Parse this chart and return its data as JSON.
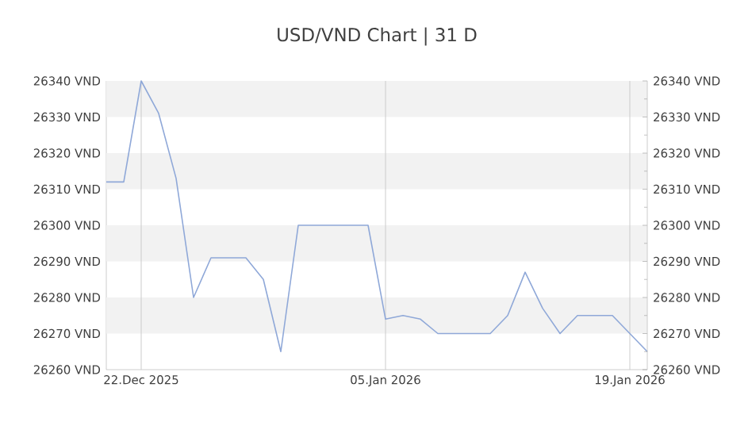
{
  "chart_data": {
    "type": "line",
    "title": "USD/VND Chart | 31 D",
    "x": [
      "2025-12-20",
      "2025-12-21",
      "2025-12-22",
      "2025-12-23",
      "2025-12-24",
      "2025-12-25",
      "2025-12-26",
      "2025-12-27",
      "2025-12-28",
      "2025-12-29",
      "2025-12-30",
      "2025-12-31",
      "2026-01-01",
      "2026-01-02",
      "2026-01-03",
      "2026-01-04",
      "2026-01-05",
      "2026-01-06",
      "2026-01-07",
      "2026-01-08",
      "2026-01-09",
      "2026-01-10",
      "2026-01-11",
      "2026-01-12",
      "2026-01-13",
      "2026-01-14",
      "2026-01-15",
      "2026-01-16",
      "2026-01-17",
      "2026-01-18",
      "2026-01-19",
      "2026-01-20"
    ],
    "series": [
      {
        "color": "#8fa8d8",
        "values": [
          26312,
          26312,
          26340,
          26331,
          26313,
          26280,
          26291,
          26291,
          26291,
          26285,
          26265,
          26300,
          26300,
          26300,
          26300,
          26300,
          26274,
          26275,
          26274,
          26270,
          26270,
          26270,
          26270,
          26275,
          26287,
          26277,
          26270,
          26275,
          26275,
          26275,
          26270,
          26265
        ]
      }
    ],
    "xlim": [
      "2025-12-20",
      "2026-01-20"
    ],
    "xticks": [
      {
        "value": "2025-12-22",
        "label": "22.Dec 2025"
      },
      {
        "value": "2026-01-05",
        "label": "05.Jan 2026"
      },
      {
        "value": "2026-01-19",
        "label": "19.Jan 2026"
      }
    ],
    "ylim": [
      26260,
      26340
    ],
    "yticks": [
      {
        "value": 26260,
        "label": "26260 VND"
      },
      {
        "value": 26270,
        "label": "26270 VND"
      },
      {
        "value": 26280,
        "label": "26280 VND"
      },
      {
        "value": 26290,
        "label": "26290 VND"
      },
      {
        "value": 26300,
        "label": "26300 VND"
      },
      {
        "value": 26310,
        "label": "26310 VND"
      },
      {
        "value": 26320,
        "label": "26320 VND"
      },
      {
        "value": 26330,
        "label": "26330 VND"
      },
      {
        "value": 26340,
        "label": "26340 VND"
      }
    ],
    "y2lim": [
      26260,
      26340
    ],
    "y2ticks": [
      {
        "value": 26260,
        "label": "26260 VND"
      },
      {
        "value": 26270,
        "label": "26270 VND"
      },
      {
        "value": 26280,
        "label": "26280 VND"
      },
      {
        "value": 26290,
        "label": "26290 VND"
      },
      {
        "value": 26300,
        "label": "26300 VND"
      },
      {
        "value": 26310,
        "label": "26310 VND"
      },
      {
        "value": 26320,
        "label": "26320 VND"
      },
      {
        "value": 26330,
        "label": "26330 VND"
      },
      {
        "value": 26340,
        "label": "26340 VND"
      }
    ],
    "grid": true,
    "line_style": "solid"
  }
}
